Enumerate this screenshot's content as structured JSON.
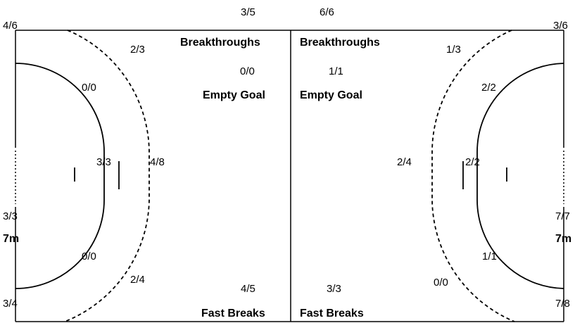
{
  "left_half": {
    "corner_top": "4/6",
    "corner_bottom": "3/4",
    "wing_top": "2/3",
    "wing_bottom": "2/4",
    "six_m_top": "0/0",
    "six_m_bottom": "0/0",
    "six_m_center": "3/3",
    "nine_m_center": "4/8",
    "seven_m_value": "3/3",
    "seven_m_label": "7m",
    "breakthroughs_value": "3/5",
    "breakthroughs_label": "Breakthroughs",
    "empty_goal_value": "0/0",
    "empty_goal_label": "Empty Goal",
    "fast_breaks_value": "4/5",
    "fast_breaks_label": "Fast Breaks"
  },
  "right_half": {
    "corner_top": "3/6",
    "corner_bottom": "7/8",
    "wing_top": "1/3",
    "wing_bottom": "0/0",
    "six_m_top": "2/2",
    "six_m_bottom": "1/1",
    "six_m_center": "2/2",
    "nine_m_center": "2/4",
    "seven_m_value": "7/7",
    "seven_m_label": "7m",
    "breakthroughs_value": "6/6",
    "breakthroughs_label": "Breakthroughs",
    "empty_goal_value": "1/1",
    "empty_goal_label": "Empty Goal",
    "fast_breaks_value": "3/3",
    "fast_breaks_label": "Fast Breaks"
  },
  "colors": {
    "line": "#000000",
    "background": "#ffffff"
  }
}
